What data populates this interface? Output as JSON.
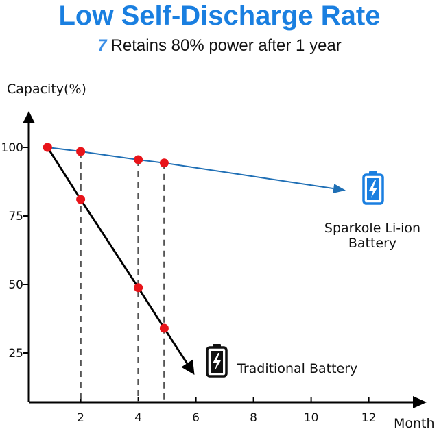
{
  "chart_data": {
    "type": "line",
    "title": "Low Self-Discharge Rate",
    "subtitle": "Retains 80% power after 1 year",
    "xlabel": "Month",
    "ylabel": "Capacity(%)",
    "xlim": [
      0.2,
      13.5
    ],
    "ylim": [
      7,
      111
    ],
    "xticks": [
      2,
      4,
      6,
      8,
      10,
      12
    ],
    "yticks": [
      25,
      50,
      75,
      100
    ],
    "grid": false,
    "series": [
      {
        "name": "Sparkole Li-ion Battery",
        "label_lines": [
          "Sparkole Li-ion",
          "Battery"
        ],
        "color": "#1f6fb5",
        "icon_color": "#1a7fe0",
        "points": [
          [
            0.85,
            100
          ],
          [
            2,
            98.5
          ],
          [
            4,
            95.5
          ],
          [
            4.9,
            94.3
          ]
        ],
        "arrow_to": [
          11.2,
          84.3
        ]
      },
      {
        "name": "Traditional Battery",
        "label_lines": [
          "Traditional Battery"
        ],
        "color": "#000000",
        "icon_color": "#111111",
        "points": [
          [
            0.85,
            100
          ],
          [
            2,
            81
          ],
          [
            4,
            48.8
          ],
          [
            4.9,
            34
          ]
        ],
        "arrow_to": [
          5.95,
          17
        ]
      }
    ],
    "marker_color": "#e8141a",
    "dashed_guides_x": [
      2,
      4,
      4.9
    ]
  }
}
